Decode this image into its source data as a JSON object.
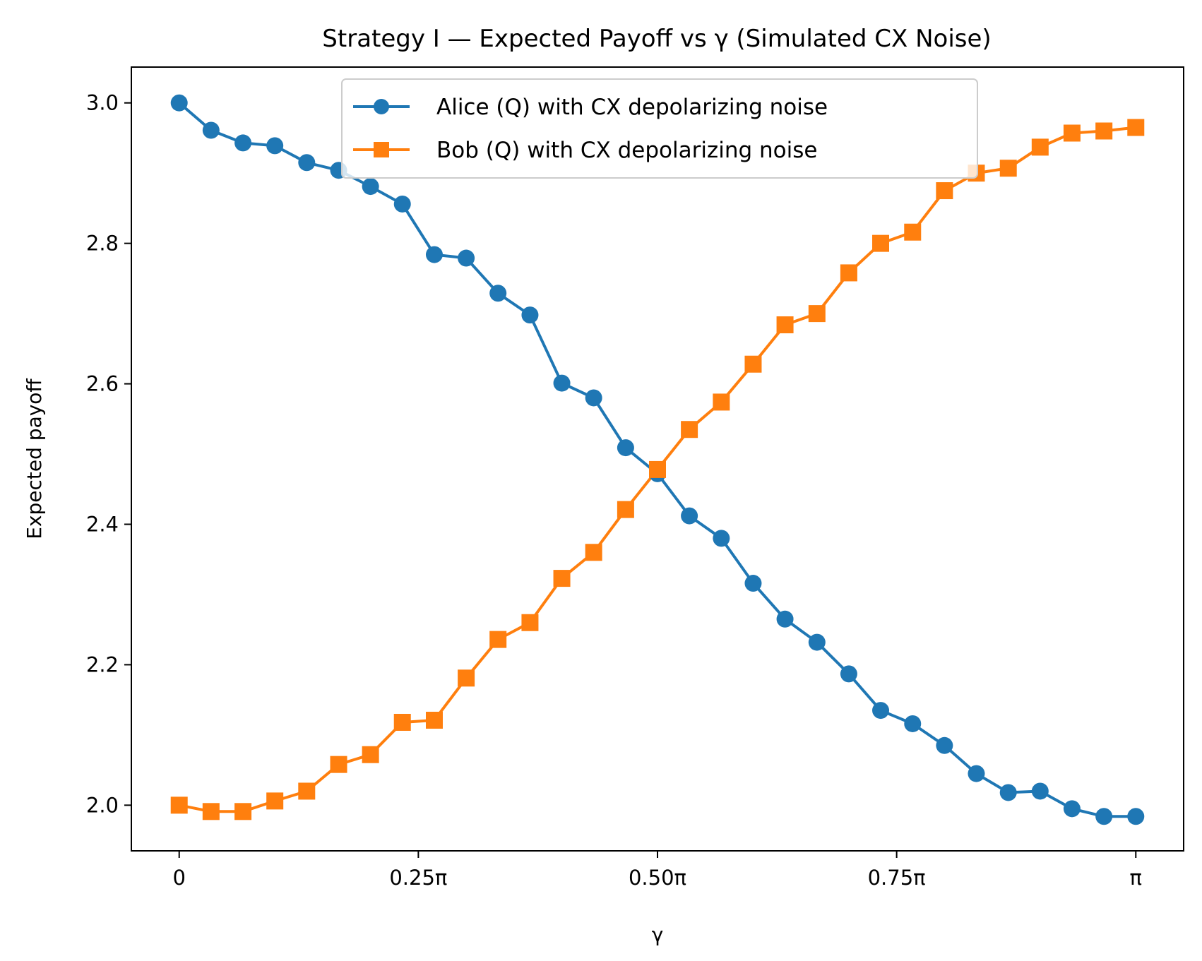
{
  "chart_data": {
    "type": "line",
    "title": "Strategy I — Expected Payoff vs γ (Simulated CX Noise)",
    "xlabel": "γ",
    "ylabel": "Expected payoff",
    "xlim": [
      -0.05,
      1.05
    ],
    "ylim": [
      1.935,
      3.051
    ],
    "x_unit": "π",
    "xticks": [
      {
        "value": 0,
        "label": "0"
      },
      {
        "value": 0.25,
        "label": "0.25π"
      },
      {
        "value": 0.5,
        "label": "0.50π"
      },
      {
        "value": 0.75,
        "label": "0.75π"
      },
      {
        "value": 1,
        "label": "π"
      }
    ],
    "yticks": [
      {
        "value": 2.0,
        "label": "2.0"
      },
      {
        "value": 2.2,
        "label": "2.2"
      },
      {
        "value": 2.4,
        "label": "2.4"
      },
      {
        "value": 2.6,
        "label": "2.6"
      },
      {
        "value": 2.8,
        "label": "2.8"
      },
      {
        "value": 3.0,
        "label": "3.0"
      }
    ],
    "grid": false,
    "legend_position": "top-center",
    "x": [
      0,
      0.0333,
      0.0667,
      0.1,
      0.1333,
      0.1667,
      0.2,
      0.2333,
      0.2667,
      0.3,
      0.3333,
      0.3667,
      0.4,
      0.4333,
      0.4667,
      0.5,
      0.5333,
      0.5667,
      0.6,
      0.6333,
      0.6667,
      0.7,
      0.7333,
      0.7667,
      0.8,
      0.8333,
      0.8667,
      0.9,
      0.9333,
      0.9667,
      1.0
    ],
    "series": [
      {
        "name": "Alice (Q) with CX depolarizing noise",
        "color": "#1f77b4",
        "marker": "circle",
        "values": [
          3.0,
          2.961,
          2.943,
          2.939,
          2.915,
          2.904,
          2.881,
          2.856,
          2.784,
          2.779,
          2.729,
          2.698,
          2.601,
          2.58,
          2.509,
          2.472,
          2.412,
          2.38,
          2.316,
          2.265,
          2.232,
          2.187,
          2.135,
          2.116,
          2.085,
          2.045,
          2.018,
          2.02,
          1.995,
          1.984,
          1.984
        ]
      },
      {
        "name": "Bob (Q) with CX depolarizing noise",
        "color": "#ff7f0e",
        "marker": "square",
        "values": [
          2.0,
          1.991,
          1.991,
          2.006,
          2.02,
          2.058,
          2.072,
          2.118,
          2.121,
          2.181,
          2.236,
          2.26,
          2.323,
          2.36,
          2.421,
          2.478,
          2.535,
          2.574,
          2.628,
          2.684,
          2.7,
          2.758,
          2.8,
          2.816,
          2.875,
          2.9,
          2.907,
          2.937,
          2.957,
          2.96,
          2.965
        ]
      }
    ]
  }
}
